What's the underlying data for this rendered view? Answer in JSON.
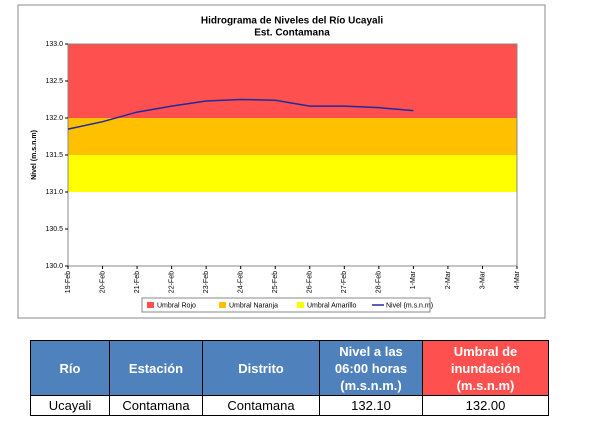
{
  "chart_data": {
    "type": "line",
    "title": "Hidrograma de Niveles del Río Ucayali",
    "subtitle": "Est. Contamana",
    "y_label": "Nivel (m.s.n.m)",
    "categories": [
      "19-Feb",
      "20-Feb",
      "21-Feb",
      "22-Feb",
      "23-Feb",
      "24-Feb",
      "25-Feb",
      "26-Feb",
      "27-Feb",
      "28-Feb",
      "1-Mar",
      "2-Mar",
      "3-Mar",
      "4-Mar"
    ],
    "bands": [
      {
        "name": "Umbral Rojo",
        "color": "#ff5050",
        "from": 132.0,
        "to": 133.0
      },
      {
        "name": "Umbral Naranja",
        "color": "#ffc000",
        "from": 131.5,
        "to": 132.0
      },
      {
        "name": "Umbral Amarillo",
        "color": "#ffff00",
        "from": 131.0,
        "to": 131.5
      }
    ],
    "series": [
      {
        "name": "Nivel (m.s.n.m)",
        "color": "#1f2a9c",
        "values": [
          131.85,
          131.95,
          132.08,
          132.16,
          132.23,
          132.25,
          132.24,
          132.16,
          132.16,
          132.14,
          132.1,
          null,
          null,
          null
        ]
      }
    ],
    "ylim": [
      130.0,
      133.0
    ],
    "yticks": [
      {
        "value": 130.0,
        "label": "130.0"
      },
      130.5,
      {
        "value": 131.0,
        "label": "131.0"
      },
      131.5,
      {
        "value": 132.0,
        "label": "132.0"
      },
      132.5,
      {
        "value": 133.0,
        "label": "133.0"
      }
    ],
    "legend": "bottom"
  },
  "table": {
    "header": [
      [
        "Río"
      ],
      [
        "Estación"
      ],
      [
        "Distrito"
      ],
      [
        "Nivel a las",
        "06:00 horas",
        "(m.s.n.m.)"
      ],
      [
        "Umbral de",
        "inundación",
        "(m.s.n.m)"
      ]
    ],
    "rows": [
      [
        "Ucayali",
        "Contamana",
        "Contamana",
        "132.10",
        "132.00"
      ]
    ]
  }
}
